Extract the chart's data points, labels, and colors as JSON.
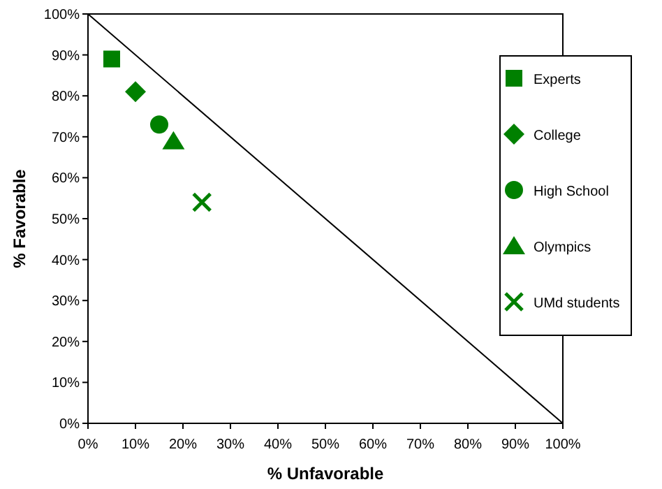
{
  "chart_data": {
    "type": "scatter",
    "xlabel": "% Unfavorable",
    "ylabel": "% Favorable",
    "xlim": [
      0,
      100
    ],
    "ylim": [
      0,
      100
    ],
    "xticks": [
      {
        "value": 0,
        "label": "0%"
      },
      {
        "value": 10,
        "label": "10%"
      },
      {
        "value": 20,
        "label": "20%"
      },
      {
        "value": 30,
        "label": "30%"
      },
      {
        "value": 40,
        "label": "40%"
      },
      {
        "value": 50,
        "label": "50%"
      },
      {
        "value": 60,
        "label": "60%"
      },
      {
        "value": 70,
        "label": "70%"
      },
      {
        "value": 80,
        "label": "80%"
      },
      {
        "value": 90,
        "label": "90%"
      },
      {
        "value": 100,
        "label": "100%"
      }
    ],
    "yticks": [
      {
        "value": 0,
        "label": "0%"
      },
      {
        "value": 10,
        "label": "10%"
      },
      {
        "value": 20,
        "label": "20%"
      },
      {
        "value": 30,
        "label": "30%"
      },
      {
        "value": 40,
        "label": "40%"
      },
      {
        "value": 50,
        "label": "50%"
      },
      {
        "value": 60,
        "label": "60%"
      },
      {
        "value": 70,
        "label": "70%"
      },
      {
        "value": 80,
        "label": "80%"
      },
      {
        "value": 90,
        "label": "90%"
      },
      {
        "value": 100,
        "label": "100%"
      }
    ],
    "legend": "right",
    "grid": false,
    "series": [
      {
        "name": "Experts",
        "color": "#008000",
        "marker": "square",
        "x": [
          5
        ],
        "values": [
          89
        ]
      },
      {
        "name": "College",
        "color": "#008000",
        "marker": "diamond",
        "x": [
          10
        ],
        "values": [
          81
        ]
      },
      {
        "name": "High School",
        "color": "#008000",
        "marker": "circle",
        "x": [
          15
        ],
        "values": [
          73
        ]
      },
      {
        "name": "Olympics",
        "color": "#008000",
        "marker": "triangle",
        "x": [
          18
        ],
        "values": [
          69
        ]
      },
      {
        "name": "UMd students",
        "color": "#008000",
        "marker": "cross",
        "x": [
          24
        ],
        "values": [
          54
        ]
      },
      {
        "type": "line",
        "color": "#000000",
        "x": [
          0,
          100
        ],
        "values": [
          100,
          0
        ]
      }
    ]
  }
}
